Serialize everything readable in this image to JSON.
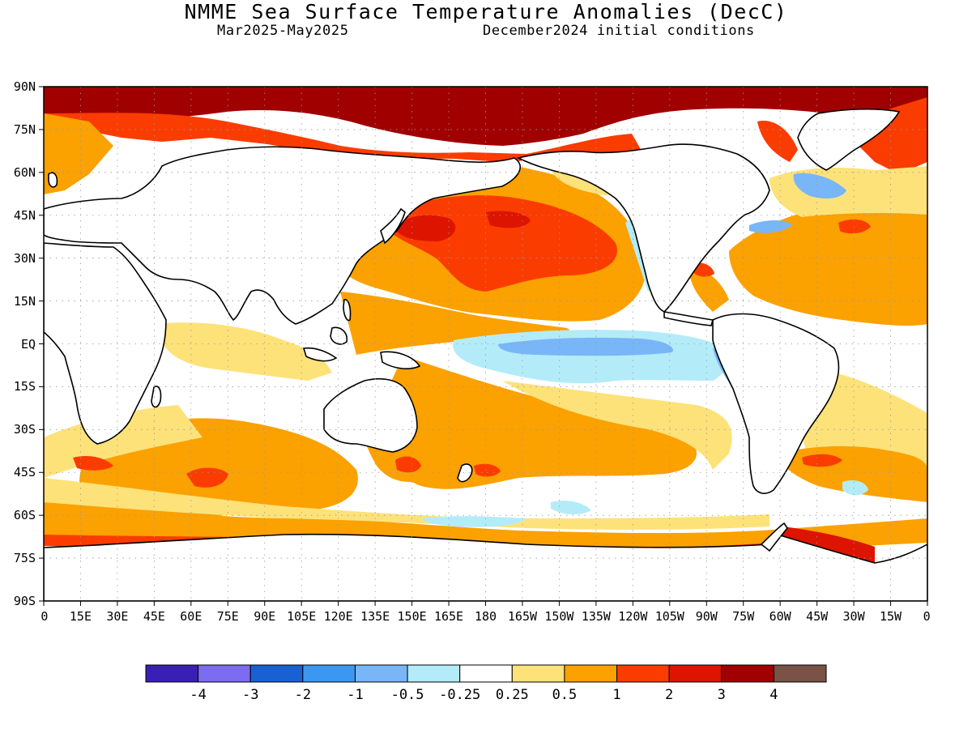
{
  "header": {
    "title": "NMME Sea Surface Temperature Anomalies (DecC)",
    "period": "Mar2025-May2025",
    "initial_conditions": "December2024 initial conditions"
  },
  "axes": {
    "lat_labels": [
      "90N",
      "75N",
      "60N",
      "45N",
      "30N",
      "15N",
      "EQ",
      "15S",
      "30S",
      "45S",
      "60S",
      "75S",
      "90S"
    ],
    "lon_labels": [
      "0",
      "15E",
      "30E",
      "45E",
      "60E",
      "75E",
      "90E",
      "105E",
      "120E",
      "135E",
      "150E",
      "165E",
      "180",
      "165W",
      "150W",
      "135W",
      "120W",
      "105W",
      "90W",
      "75W",
      "60W",
      "45W",
      "30W",
      "15W",
      "0"
    ]
  },
  "colorbar": {
    "colors": [
      "#3a1fb4",
      "#7b6cf0",
      "#1961d3",
      "#3c97f0",
      "#78b6f8",
      "#b3ecf8",
      "#ffffff",
      "#fde27a",
      "#fba100",
      "#fb3c00",
      "#dc1400",
      "#a00000",
      "#7a5246"
    ],
    "labels": [
      "-4",
      "-3",
      "-2",
      "-1",
      "-0.5",
      "-0.25",
      "0.25",
      "0.5",
      "1",
      "2",
      "3",
      "4"
    ]
  },
  "map_data": {
    "palette": {
      "c_m05": "#78b6f8",
      "c_m025": "#b3ecf8",
      "c_025": "#fde27a",
      "c_05": "#fba100",
      "c_1": "#fb3c00",
      "c_2": "#dc1400",
      "c_3": "#a00000",
      "c_4": "#7a5246",
      "land": "#ffffff",
      "coast": "#000000",
      "grid": "#9a9a9a"
    },
    "regions": [
      {
        "level": "c_3",
        "desc": "Arctic Ocean strong warm anomaly"
      },
      {
        "level": "c_05",
        "desc": "North Pacific warm anomaly"
      },
      {
        "level": "c_1",
        "desc": "North Pacific core warm anomaly"
      },
      {
        "level": "c_2",
        "desc": "Kuroshio extension warm anomaly"
      },
      {
        "level": "c_m025",
        "desc": "Equatorial Pacific cool anomaly"
      },
      {
        "level": "c_m05",
        "desc": "Equatorial Pacific cold tongue"
      },
      {
        "level": "c_05",
        "desc": "North Atlantic warm anomaly"
      },
      {
        "level": "c_m05",
        "desc": "Gulf Stream cool anomaly"
      },
      {
        "level": "c_05",
        "desc": "Southern Ocean warm band"
      },
      {
        "level": "c_1",
        "desc": "Antarctic coastal warm anomaly"
      }
    ]
  }
}
